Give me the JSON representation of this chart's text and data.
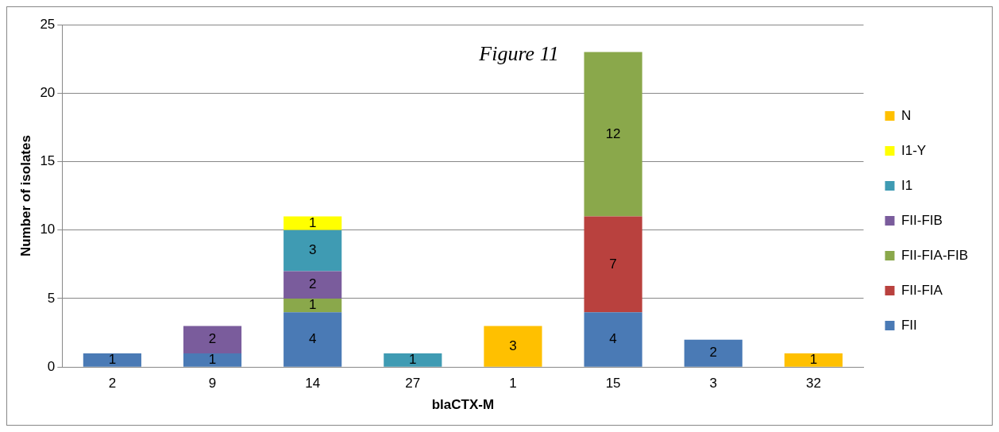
{
  "chart_data": {
    "type": "bar",
    "title": "Figure 11",
    "xlabel": "blaCTX-M",
    "ylabel": "Number of isolates",
    "categories": [
      "2",
      "9",
      "14",
      "27",
      "1",
      "15",
      "3",
      "32"
    ],
    "stacked": true,
    "data_labels": true,
    "grid": "y",
    "legend": "right",
    "ylim": [
      0,
      25
    ],
    "yticks": [
      0,
      5,
      10,
      15,
      20,
      25
    ],
    "series": [
      {
        "name": "FII",
        "color": "#4a7ab5",
        "values": [
          1,
          1,
          4,
          null,
          null,
          4,
          2,
          null
        ]
      },
      {
        "name": "FII-FIA",
        "color": "#b9413e",
        "values": [
          null,
          null,
          null,
          null,
          null,
          7,
          null,
          null
        ]
      },
      {
        "name": "FII-FIA-FIB",
        "color": "#8aa84b",
        "values": [
          null,
          null,
          1,
          null,
          null,
          12,
          null,
          null
        ]
      },
      {
        "name": "FII-FIB",
        "color": "#7a5c9c",
        "values": [
          null,
          2,
          2,
          null,
          null,
          null,
          null,
          null
        ]
      },
      {
        "name": "I1",
        "color": "#3f9bb3",
        "values": [
          null,
          null,
          3,
          1,
          null,
          null,
          null,
          null
        ]
      },
      {
        "name": "I1-Y",
        "color": "#ffff00",
        "values": [
          null,
          null,
          1,
          null,
          null,
          null,
          null,
          null
        ]
      },
      {
        "name": "N",
        "color": "#ffc000",
        "values": [
          null,
          null,
          null,
          null,
          3,
          null,
          null,
          1
        ]
      }
    ]
  }
}
